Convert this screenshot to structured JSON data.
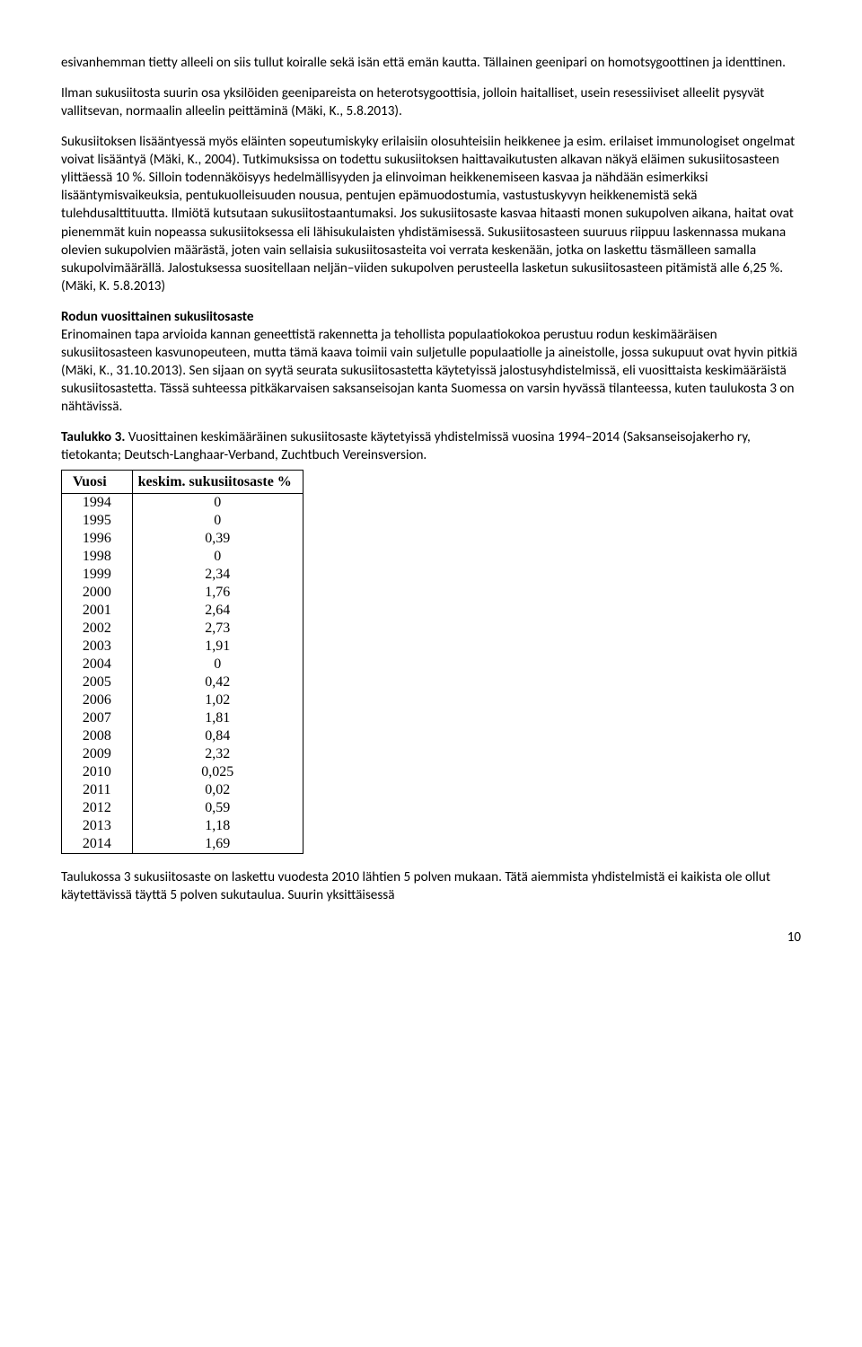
{
  "p1": "esivanhemman tietty alleeli on siis tullut koiralle sekä isän että emän kautta. Tällainen geenipari on homotsygoottinen ja identtinen.",
  "p2": "Ilman sukusiitosta suurin osa yksilöiden geenipareista on heterotsygoottisia, jolloin haitalliset, usein resessiiviset alleelit pysyvät vallitsevan, normaalin alleelin peittäminä (Mäki, K., 5.8.2013).",
  "p3": "Sukusiitoksen lisääntyessä myös eläinten sopeutumiskyky erilaisiin olosuhteisiin heikkenee ja esim. erilaiset immunologiset ongelmat voivat lisääntyä (Mäki, K., 2004). Tutkimuksissa on todettu sukusiitoksen haittavaikutusten alkavan näkyä eläimen sukusiitosasteen ylittäessä 10 %. Silloin todennäköisyys hedelmällisyyden ja elinvoiman heikkenemiseen kasvaa ja nähdään esimerkiksi lisääntymisvaikeuksia, pentukuolleisuuden nousua, pentujen epämuodostumia, vastustuskyvyn heikkenemistä sekä tulehdusalttituutta. Ilmiötä kutsutaan sukusiitostaantumaksi. Jos sukusiitosaste kasvaa hitaasti monen sukupolven aikana, haitat ovat pienemmät kuin nopeassa sukusiitoksessa eli lähisukulaisten yhdistämisessä. Sukusiitosasteen suuruus riippuu laskennassa mukana olevien sukupolvien määrästä, joten vain sellaisia sukusiitosasteita voi verrata keskenään, jotka on laskettu täsmälleen samalla sukupolvimäärällä. Jalostuksessa suositellaan neljän–viiden sukupolven perusteella lasketun sukusiitosasteen pitämistä alle 6,25 %. (Mäki, K. 5.8.2013)",
  "heading": "Rodun vuosittainen sukusiitosaste",
  "p4": "Erinomainen tapa arvioida kannan geneettistä rakennetta ja tehollista populaatiokokoa perustuu rodun keskimääräisen sukusiitosasteen kasvunopeuteen, mutta tämä kaava toimii vain suljetulle populaatiolle ja aineistolle, jossa sukupuut ovat hyvin pitkiä (Mäki, K., 31.10.2013). Sen sijaan on syytä seurata sukusiitosastetta käytetyissä jalostusyhdistelmissä, eli vuosittaista keskimääräistä sukusiitosastetta. Tässä suhteessa pitkäkarvaisen saksanseisojan kanta Suomessa on varsin hyvässä tilanteessa, kuten taulukosta 3 on nähtävissä.",
  "caption_bold": "Taulukko 3.",
  "caption_rest": " Vuosittainen keskimääräinen sukusiitosaste käytetyissä yhdistelmissä vuosina 1994–2014 (Saksanseisojakerho ry, tietokanta; Deutsch-Langhaar-Verband, Zuchtbuch Vereinsversion.",
  "table": {
    "col_year": "Vuosi",
    "col_val": "keskim. sukusiitosaste %",
    "rows": [
      [
        "1994",
        "0"
      ],
      [
        "1995",
        "0"
      ],
      [
        "1996",
        "0,39"
      ],
      [
        "1998",
        "0"
      ],
      [
        "1999",
        "2,34"
      ],
      [
        "2000",
        "1,76"
      ],
      [
        "2001",
        "2,64"
      ],
      [
        "2002",
        "2,73"
      ],
      [
        "2003",
        "1,91"
      ],
      [
        "2004",
        "0"
      ],
      [
        "2005",
        "0,42"
      ],
      [
        "2006",
        "1,02"
      ],
      [
        "2007",
        "1,81"
      ],
      [
        "2008",
        "0,84"
      ],
      [
        "2009",
        "2,32"
      ],
      [
        "2010",
        "0,025"
      ],
      [
        "2011",
        "0,02"
      ],
      [
        "2012",
        "0,59"
      ],
      [
        "2013",
        "1,18"
      ],
      [
        "2014",
        "1,69"
      ]
    ]
  },
  "p5": "Taulukossa 3 sukusiitosaste on laskettu vuodesta 2010 lähtien 5 polven mukaan. Tätä aiemmista yhdistelmistä ei kaikista ole ollut käytettävissä täyttä 5 polven sukutaulua. Suurin yksittäisessä",
  "page_number": "10"
}
